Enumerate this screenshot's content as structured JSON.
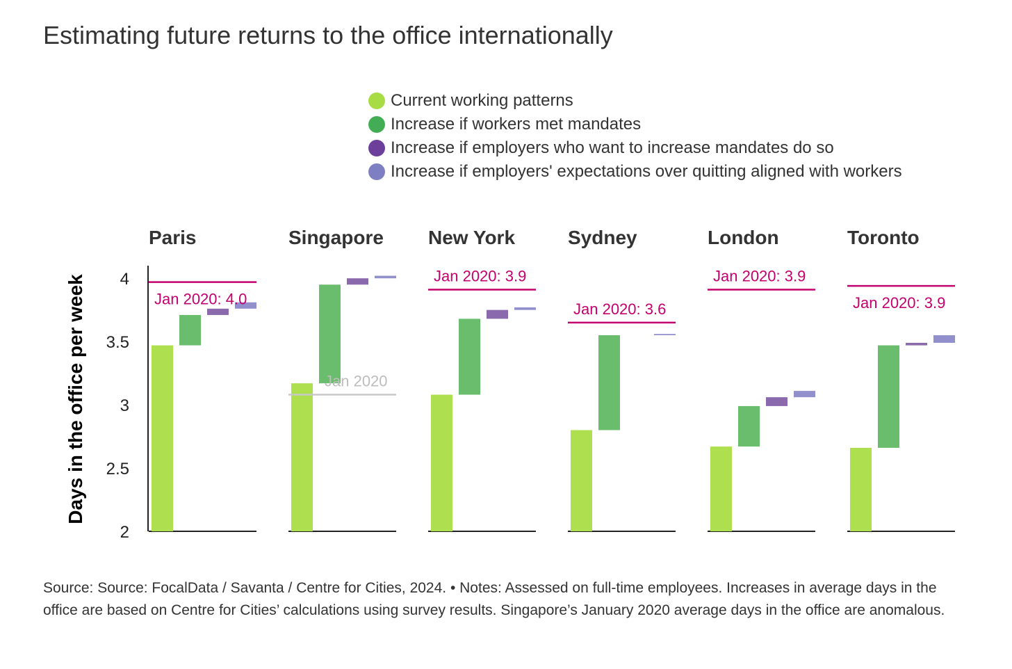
{
  "title": "Estimating future returns to the office internationally",
  "legend": [
    {
      "label": "Current working patterns",
      "color": "#a8dc44"
    },
    {
      "label": "Increase if workers met mandates",
      "color": "#43ad55"
    },
    {
      "label": "Increase if employers who want to increase mandates do so",
      "color": "#6b3f9a"
    },
    {
      "label": "Increase if employers' expectations over quitting aligned with workers",
      "color": "#7e7fc2"
    }
  ],
  "footer": {
    "text": "Source: Source: FocalData / Savanta / Centre for Cities, 2024. • Notes: Assessed on full-time employees. Increases in average days in the office are based on Centre for Cities’ calculations using survey results. Singapore’s January 2020 average days in the office are anomalous."
  },
  "chart_data": {
    "type": "bar",
    "subtype": "waterfall-small-multiples",
    "ylabel": "Days in the office per week",
    "ylim": [
      2,
      4.1
    ],
    "yticks": [
      "2",
      "2.5",
      "3",
      "3.5",
      "4"
    ],
    "series": [
      {
        "name": "Current working patterns",
        "color": "#addf4e"
      },
      {
        "name": "Increase if workers met mandates",
        "color": "#6abd6d"
      },
      {
        "name": "Increase if employers who want to increase mandates do so",
        "color": "#8a6aad"
      },
      {
        "name": "Increase if employers' expectations over quitting aligned with workers",
        "color": "#9190cc"
      }
    ],
    "reference_color": "#c4006e",
    "anomalous_color": "#c8c8c8",
    "panels": [
      {
        "city": "Paris",
        "current": 3.47,
        "steps": [
          0.24,
          0.05,
          0.05
        ],
        "jan2020": {
          "label": "Jan 2020: 4.0",
          "value": 3.97,
          "anomalous": false,
          "label_pos": "below"
        }
      },
      {
        "city": "Singapore",
        "current": 3.17,
        "steps": [
          0.78,
          0.05,
          0.02
        ],
        "jan2020": {
          "label": "Jan 2020",
          "value": 3.08,
          "anomalous": true,
          "label_pos": "above"
        }
      },
      {
        "city": "New York",
        "current": 3.08,
        "steps": [
          0.6,
          0.07,
          0.02
        ],
        "jan2020": {
          "label": "Jan 2020: 3.9",
          "value": 3.91,
          "anomalous": false,
          "label_pos": "above"
        }
      },
      {
        "city": "Sydney",
        "current": 2.8,
        "steps": [
          0.75,
          0.0,
          0.01
        ],
        "jan2020": {
          "label": "Jan 2020: 3.6",
          "value": 3.65,
          "anomalous": false,
          "label_pos": "above"
        }
      },
      {
        "city": "London",
        "current": 2.67,
        "steps": [
          0.32,
          0.07,
          0.05
        ],
        "jan2020": {
          "label": "Jan 2020: 3.9",
          "value": 3.91,
          "anomalous": false,
          "label_pos": "above"
        }
      },
      {
        "city": "Toronto",
        "current": 2.66,
        "steps": [
          0.81,
          0.02,
          0.06
        ],
        "jan2020": {
          "label": "Jan 2020: 3.9",
          "value": 3.94,
          "anomalous": false,
          "label_pos": "below"
        }
      }
    ]
  }
}
